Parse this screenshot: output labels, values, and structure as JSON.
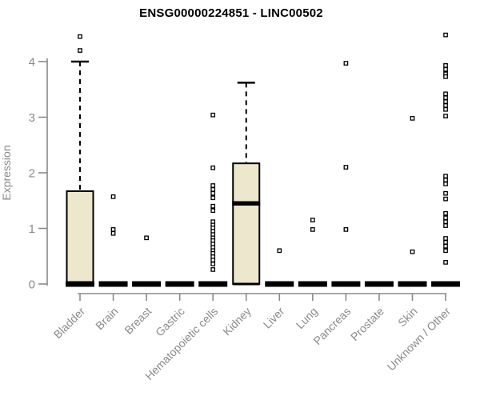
{
  "chart_data": {
    "type": "boxplot",
    "title": "ENSG00000224851 - LINC00502",
    "ylabel": "Expression",
    "ylim": [
      0,
      4.6
    ],
    "yticks": [
      "0",
      "1",
      "2",
      "3",
      "4"
    ],
    "grid": false,
    "legend": "none",
    "categories": [
      "Bladder",
      "Brain",
      "Breast",
      "Gastric",
      "Hematopoietic cells",
      "Kidney",
      "Liver",
      "Lung",
      "Pancreas",
      "Prostate",
      "Skin",
      "Unknown / Other"
    ],
    "boxes": [
      {
        "category": "Bladder",
        "q1": 0,
        "median": 0,
        "q3": 1.67,
        "whisker_low": 0,
        "whisker_high": 4.0,
        "outliers": [
          4.45,
          4.2
        ]
      },
      {
        "category": "Brain",
        "q1": 0,
        "median": 0,
        "q3": 0,
        "whisker_low": 0,
        "whisker_high": 0,
        "outliers": [
          1.57,
          0.98,
          0.91
        ]
      },
      {
        "category": "Breast",
        "q1": 0,
        "median": 0,
        "q3": 0,
        "whisker_low": 0,
        "whisker_high": 0,
        "outliers": [
          0.83
        ]
      },
      {
        "category": "Gastric",
        "q1": 0,
        "median": 0,
        "q3": 0,
        "whisker_low": 0,
        "whisker_high": 0,
        "outliers": []
      },
      {
        "category": "Hematopoietic cells",
        "q1": 0,
        "median": 0,
        "q3": 0,
        "whisker_low": 0,
        "whisker_high": 0,
        "outliers": [
          3.04,
          2.09,
          1.77,
          1.7,
          1.63,
          1.55,
          1.4,
          1.32,
          1.12,
          1.06,
          1.01,
          0.95,
          0.89,
          0.83,
          0.78,
          0.72,
          0.66,
          0.6,
          0.55,
          0.49,
          0.43,
          0.36,
          0.26
        ]
      },
      {
        "category": "Kidney",
        "q1": 0,
        "median": 1.45,
        "q3": 2.17,
        "whisker_low": 0,
        "whisker_high": 3.62,
        "outliers": []
      },
      {
        "category": "Liver",
        "q1": 0,
        "median": 0,
        "q3": 0,
        "whisker_low": 0,
        "whisker_high": 0,
        "outliers": [
          0.6
        ]
      },
      {
        "category": "Lung",
        "q1": 0,
        "median": 0,
        "q3": 0,
        "whisker_low": 0,
        "whisker_high": 0,
        "outliers": [
          1.15,
          0.98
        ]
      },
      {
        "category": "Pancreas",
        "q1": 0,
        "median": 0,
        "q3": 0,
        "whisker_low": 0,
        "whisker_high": 0,
        "outliers": [
          3.97,
          2.1,
          0.98
        ]
      },
      {
        "category": "Prostate",
        "q1": 0,
        "median": 0,
        "q3": 0,
        "whisker_low": 0,
        "whisker_high": 0,
        "outliers": []
      },
      {
        "category": "Skin",
        "q1": 0,
        "median": 0,
        "q3": 0,
        "whisker_low": 0,
        "whisker_high": 0,
        "outliers": [
          2.98,
          0.58
        ]
      },
      {
        "category": "Unknown / Other",
        "q1": 0,
        "median": 0,
        "q3": 0,
        "whisker_low": 0,
        "whisker_high": 0,
        "outliers": [
          4.48,
          3.93,
          3.86,
          3.78,
          3.73,
          3.42,
          3.35,
          3.28,
          3.21,
          3.14,
          3.02,
          1.94,
          1.87,
          1.8,
          1.63,
          1.53,
          1.27,
          1.19,
          1.12,
          1.05,
          0.82,
          0.75,
          0.68,
          0.6,
          0.39
        ]
      }
    ],
    "colors": {
      "box_fill": "#ECE7CD",
      "box_border": "#000000",
      "median": "#000000",
      "axis": "#8A8A8A",
      "tick_text": "#8A8A8A",
      "title": "#000000",
      "outlier_fill": "#FFFFFF",
      "outlier_stroke": "#000000"
    }
  }
}
